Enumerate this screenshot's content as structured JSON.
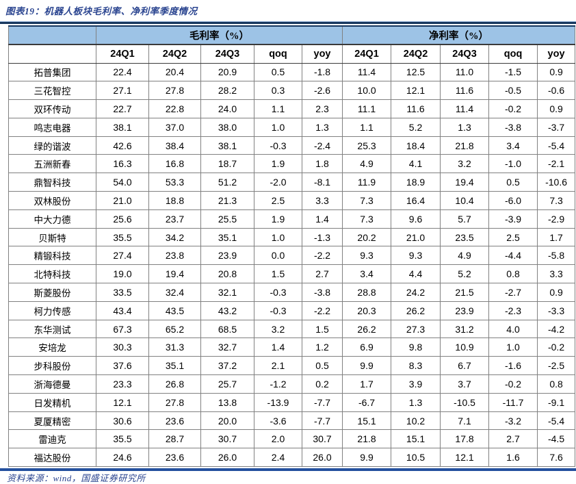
{
  "figure": {
    "title": "图表19：机器人板块毛利率、净利率季度情况",
    "source": "资料来源：wind，国盛证券研究所"
  },
  "table": {
    "corner_label": "",
    "group_headers": [
      {
        "label": "毛利率（%）",
        "span": 5
      },
      {
        "label": "净利率（%）",
        "span": 5
      }
    ],
    "sub_headers": [
      "24Q1",
      "24Q2",
      "24Q3",
      "qoq",
      "yoy",
      "24Q1",
      "24Q2",
      "24Q3",
      "qoq",
      "yoy"
    ],
    "rows": [
      {
        "name": "拓普集团",
        "values": [
          "22.4",
          "20.4",
          "20.9",
          "0.5",
          "-1.8",
          "11.4",
          "12.5",
          "11.0",
          "-1.5",
          "0.9"
        ]
      },
      {
        "name": "三花智控",
        "values": [
          "27.1",
          "27.8",
          "28.2",
          "0.3",
          "-2.6",
          "10.0",
          "12.1",
          "11.6",
          "-0.5",
          "-0.6"
        ]
      },
      {
        "name": "双环传动",
        "values": [
          "22.7",
          "22.8",
          "24.0",
          "1.1",
          "2.3",
          "11.1",
          "11.6",
          "11.4",
          "-0.2",
          "0.9"
        ]
      },
      {
        "name": "鸣志电器",
        "values": [
          "38.1",
          "37.0",
          "38.0",
          "1.0",
          "1.3",
          "1.1",
          "5.2",
          "1.3",
          "-3.8",
          "-3.7"
        ]
      },
      {
        "name": "绿的谐波",
        "values": [
          "42.6",
          "38.4",
          "38.1",
          "-0.3",
          "-2.4",
          "25.3",
          "18.4",
          "21.8",
          "3.4",
          "-5.4"
        ]
      },
      {
        "name": "五洲新春",
        "values": [
          "16.3",
          "16.8",
          "18.7",
          "1.9",
          "1.8",
          "4.9",
          "4.1",
          "3.2",
          "-1.0",
          "-2.1"
        ]
      },
      {
        "name": "鼎智科技",
        "values": [
          "54.0",
          "53.3",
          "51.2",
          "-2.0",
          "-8.1",
          "11.9",
          "18.9",
          "19.4",
          "0.5",
          "-10.6"
        ]
      },
      {
        "name": "双林股份",
        "values": [
          "21.0",
          "18.8",
          "21.3",
          "2.5",
          "3.3",
          "7.3",
          "16.4",
          "10.4",
          "-6.0",
          "7.3"
        ]
      },
      {
        "name": "中大力德",
        "values": [
          "25.6",
          "23.7",
          "25.5",
          "1.9",
          "1.4",
          "7.3",
          "9.6",
          "5.7",
          "-3.9",
          "-2.9"
        ]
      },
      {
        "name": "贝斯特",
        "values": [
          "35.5",
          "34.2",
          "35.1",
          "1.0",
          "-1.3",
          "20.2",
          "21.0",
          "23.5",
          "2.5",
          "1.7"
        ]
      },
      {
        "name": "精锻科技",
        "values": [
          "27.4",
          "23.8",
          "23.9",
          "0.0",
          "-2.2",
          "9.3",
          "9.3",
          "4.9",
          "-4.4",
          "-5.8"
        ]
      },
      {
        "name": "北特科技",
        "values": [
          "19.0",
          "19.4",
          "20.8",
          "1.5",
          "2.7",
          "3.4",
          "4.4",
          "5.2",
          "0.8",
          "3.3"
        ]
      },
      {
        "name": "斯菱股份",
        "values": [
          "33.5",
          "32.4",
          "32.1",
          "-0.3",
          "-3.8",
          "28.8",
          "24.2",
          "21.5",
          "-2.7",
          "0.9"
        ]
      },
      {
        "name": "柯力传感",
        "values": [
          "43.4",
          "43.5",
          "43.2",
          "-0.3",
          "-2.2",
          "20.3",
          "26.2",
          "23.9",
          "-2.3",
          "-3.3"
        ]
      },
      {
        "name": "东华测试",
        "values": [
          "67.3",
          "65.2",
          "68.5",
          "3.2",
          "1.5",
          "26.2",
          "27.3",
          "31.2",
          "4.0",
          "-4.2"
        ]
      },
      {
        "name": "安培龙",
        "values": [
          "30.3",
          "31.3",
          "32.7",
          "1.4",
          "1.2",
          "6.9",
          "9.8",
          "10.9",
          "1.0",
          "-0.2"
        ]
      },
      {
        "name": "步科股份",
        "values": [
          "37.6",
          "35.1",
          "37.2",
          "2.1",
          "0.5",
          "9.9",
          "8.3",
          "6.7",
          "-1.6",
          "-2.5"
        ]
      },
      {
        "name": "浙海德曼",
        "values": [
          "23.3",
          "26.8",
          "25.7",
          "-1.2",
          "0.2",
          "1.7",
          "3.9",
          "3.7",
          "-0.2",
          "0.8"
        ]
      },
      {
        "name": "日发精机",
        "values": [
          "12.1",
          "27.8",
          "13.8",
          "-13.9",
          "-7.7",
          "-6.7",
          "1.3",
          "-10.5",
          "-11.7",
          "-9.1"
        ]
      },
      {
        "name": "夏厦精密",
        "values": [
          "30.6",
          "23.6",
          "20.0",
          "-3.6",
          "-7.7",
          "15.1",
          "10.2",
          "7.1",
          "-3.2",
          "-5.4"
        ]
      },
      {
        "name": "雷迪克",
        "values": [
          "35.5",
          "28.7",
          "30.7",
          "2.0",
          "30.7",
          "21.8",
          "15.1",
          "17.8",
          "2.7",
          "-4.5"
        ]
      },
      {
        "name": "福达股份",
        "values": [
          "24.6",
          "23.6",
          "26.0",
          "2.4",
          "26.0",
          "9.9",
          "10.5",
          "12.1",
          "1.6",
          "7.6"
        ]
      }
    ]
  },
  "colors": {
    "accent_blue": "#2B4590",
    "rule_navy": "#17375E",
    "header_fill": "#9DC3E6",
    "grid_line": "#808080"
  }
}
